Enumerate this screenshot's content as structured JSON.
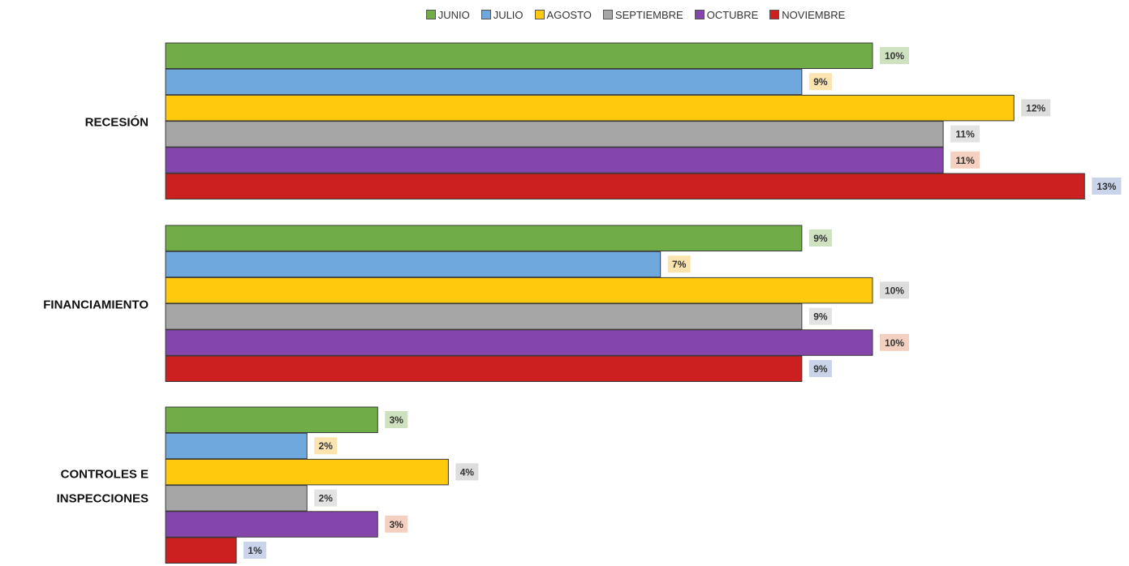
{
  "chart_data": {
    "type": "bar",
    "orientation": "horizontal",
    "categories": [
      "RECESIÓN",
      "FINANCIAMIENTO",
      "CONTROLES E INSPECCIONES"
    ],
    "category_lines": [
      [
        "RECESIÓN"
      ],
      [
        "FINANCIAMIENTO"
      ],
      [
        "CONTROLES E",
        "INSPECCIONES"
      ]
    ],
    "series": [
      {
        "name": "JUNIO",
        "color": "#70ad47",
        "label_bg": "#cfe2c0",
        "values": [
          10,
          9,
          3
        ]
      },
      {
        "name": "JULIO",
        "color": "#6fa8dc",
        "label_bg": "#fce4b0",
        "values": [
          9,
          7,
          2
        ]
      },
      {
        "name": "AGOSTO",
        "color": "#ffc90e",
        "label_bg": "#dddddd",
        "values": [
          12,
          10,
          4
        ]
      },
      {
        "name": "SEPTIEMBRE",
        "color": "#a6a6a6",
        "label_bg": "#e3e3e3",
        "values": [
          11,
          9,
          2
        ]
      },
      {
        "name": "OCTUBRE",
        "color": "#8446ad",
        "label_bg": "#f4d0c0",
        "values": [
          11,
          10,
          3
        ]
      },
      {
        "name": "NOVIEMBRE",
        "color": "#cc1f1f",
        "label_bg": "#c9d3ea",
        "values": [
          13,
          9,
          1
        ]
      }
    ],
    "value_suffix": "%",
    "legend_position": "top",
    "grid": false,
    "xaxis_visible": false
  }
}
